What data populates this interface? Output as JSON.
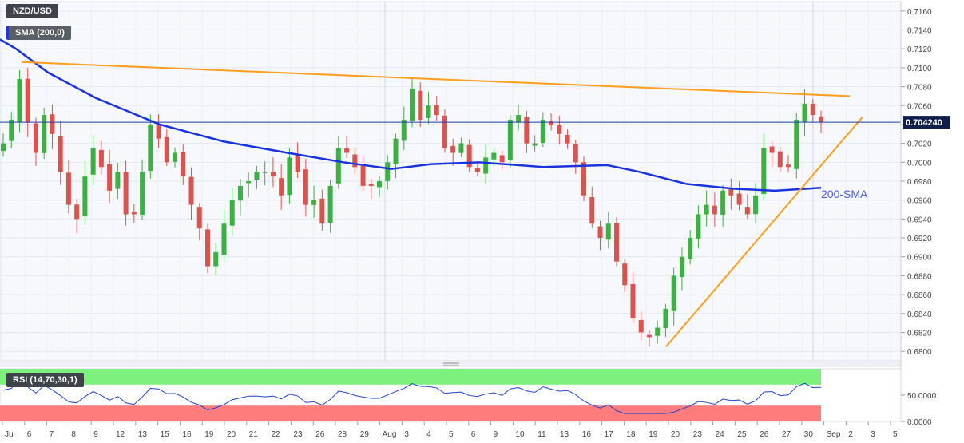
{
  "labels": {
    "pair": "NZD/USD",
    "sma": "SMA (200,0)",
    "rsi": "RSI (14,70,30,1)",
    "annotation_sma": "200-SMA",
    "last_price": "0.704240"
  },
  "colors": {
    "bull": "#3cb043",
    "bear": "#d9534f",
    "sma": "#1a33dd",
    "trend": "#ff9d1c",
    "rsi_line": "#2244cc",
    "overbought": "#7df07d",
    "oversold": "#ff7c7c"
  },
  "chart_data": {
    "type": "candlestick",
    "price_axis": {
      "ticks": [
        "0.7160",
        "0.7140",
        "0.7120",
        "0.7100",
        "0.7080",
        "0.7060",
        "0.7040",
        "0.7020",
        "0.7000",
        "0.6980",
        "0.6960",
        "0.6940",
        "0.6920",
        "0.6900",
        "0.6880",
        "0.6860",
        "0.6840",
        "0.6820",
        "0.6800"
      ],
      "ylim": [
        0.679,
        0.717
      ]
    },
    "x_axis": {
      "ticks": [
        "Jul",
        "6",
        "7",
        "8",
        "9",
        "12",
        "13",
        "15",
        "16",
        "19",
        "20",
        "21",
        "22",
        "23",
        "26",
        "28",
        "29",
        "Aug",
        "3",
        "4",
        "5",
        "6",
        "9",
        "10",
        "11",
        "13",
        "16",
        "17",
        "18",
        "19",
        "20",
        "23",
        "24",
        "25",
        "26",
        "27",
        "30",
        "Sep",
        "2",
        "3",
        "5"
      ]
    },
    "last_price": 0.70424,
    "candles_close": [
      0.702,
      0.7045,
      0.7088,
      0.7042,
      0.701,
      0.705,
      0.703,
      0.699,
      0.6955,
      0.694,
      0.6985,
      0.7015,
      0.6995,
      0.697,
      0.699,
      0.6945,
      0.6945,
      0.699,
      0.704,
      0.7025,
      0.7,
      0.701,
      0.6985,
      0.6955,
      0.693,
      0.689,
      0.6905,
      0.6935,
      0.696,
      0.6975,
      0.698,
      0.699,
      0.699,
      0.6985,
      0.6965,
      0.7005,
      0.699,
      0.6955,
      0.696,
      0.6935,
      0.6975,
      0.7015,
      0.701,
      0.6995,
      0.6975,
      0.6975,
      0.698,
      0.7,
      0.7025,
      0.7045,
      0.7078,
      0.7045,
      0.706,
      0.705,
      0.7015,
      0.701,
      0.702,
      0.6995,
      0.699,
      0.7005,
      0.701,
      0.7,
      0.7045,
      0.705,
      0.702,
      0.702,
      0.7045,
      0.704,
      0.703,
      0.702,
      0.7,
      0.6965,
      0.6935,
      0.692,
      0.6935,
      0.6895,
      0.687,
      0.6835,
      0.682,
      0.6815,
      0.6825,
      0.6845,
      0.688,
      0.69,
      0.692,
      0.6945,
      0.6955,
      0.6945,
      0.697,
      0.6965,
      0.6955,
      0.6945,
      0.6965,
      0.7015,
      0.701,
      0.6995,
      0.6995,
      0.7045,
      0.7062,
      0.705,
      0.7042
    ],
    "sma200": [
      [
        0,
        0.713
      ],
      [
        20,
        0.712
      ],
      [
        60,
        0.7095
      ],
      [
        120,
        0.7068
      ],
      [
        200,
        0.704
      ],
      [
        280,
        0.7022
      ],
      [
        360,
        0.701
      ],
      [
        430,
        0.7
      ],
      [
        490,
        0.6993
      ],
      [
        540,
        0.6998
      ],
      [
        600,
        0.7
      ],
      [
        680,
        0.6995
      ],
      [
        760,
        0.6997
      ],
      [
        800,
        0.699
      ],
      [
        860,
        0.6977
      ],
      [
        920,
        0.6972
      ],
      [
        970,
        0.697
      ],
      [
        1028,
        0.6973
      ]
    ],
    "resistance_line": [
      [
        "Jul 6",
        0.7106
      ],
      [
        "Sep 3",
        0.707
      ]
    ],
    "support_line": [
      [
        "Aug 19",
        0.6805
      ],
      [
        "Sep 1",
        0.7048
      ]
    ],
    "rsi": {
      "levels": [
        70,
        30
      ],
      "ticks": [
        "50.0000",
        "0.0000"
      ],
      "ylim": [
        0,
        100
      ]
    }
  }
}
